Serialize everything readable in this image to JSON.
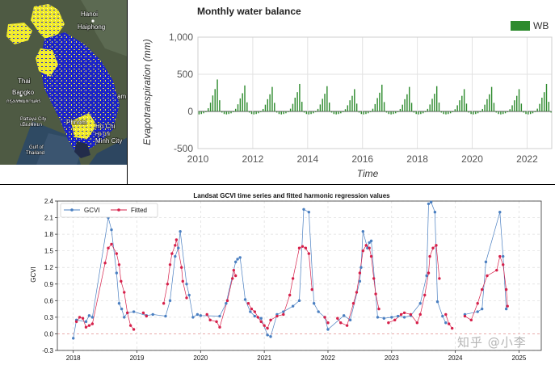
{
  "map": {
    "labels": [
      "Hanoi",
      "Haiphong",
      "Thai",
      "Bangko",
      "กรุงเทพมหานคร",
      "Pattaya City",
      "เมืองพัทยา",
      "Phnom",
      "Ho Chi",
      "Hồ Chí",
      "Minh City",
      "Gulf of",
      "Thailand",
      "am"
    ]
  },
  "chart_data": [
    {
      "type": "bar",
      "title": "Monthly water balance",
      "xlabel": "Time",
      "ylabel": "Evapotranspiration (mm)",
      "xlim": [
        2010,
        2022.9
      ],
      "ylim": [
        -500,
        1000
      ],
      "xticks": [
        2010,
        2012,
        2014,
        2016,
        2018,
        2020,
        2022
      ],
      "xtick_labels": [
        "2010",
        "2012",
        "2014",
        "2016",
        "2018",
        "2020",
        "2022"
      ],
      "yticks": [
        -500,
        0,
        500,
        1000
      ],
      "ytick_labels": [
        "-500",
        "0",
        "500",
        "1,000"
      ],
      "legend_position": "top-right",
      "grid": true,
      "series": [
        {
          "name": "WB",
          "color": "#2e8b2e",
          "start": "2010-01",
          "monthly_pattern": [
            -40,
            -35,
            -25,
            -10,
            40,
            110,
            200,
            280,
            400,
            140,
            -15,
            -35
          ],
          "year_peak_sep": [
            430,
            350,
            330,
            370,
            340,
            300,
            360,
            330,
            340,
            300,
            330,
            300,
            370
          ]
        }
      ]
    },
    {
      "type": "scatter",
      "title": "Landsat GCVI time series and fitted harmonic regression values",
      "xlabel": "",
      "ylabel": "GCVI",
      "xlim": [
        2017.75,
        2025.35
      ],
      "ylim": [
        -0.3,
        2.4
      ],
      "xticks": [
        2018,
        2019,
        2020,
        2021,
        2022,
        2023,
        2024,
        2025
      ],
      "xtick_labels": [
        "2018",
        "2019",
        "2020",
        "2021",
        "2022",
        "2023",
        "2024",
        "2025"
      ],
      "yticks": [
        -0.3,
        0.0,
        0.3,
        0.6,
        0.9,
        1.2,
        1.5,
        1.8,
        2.1,
        2.4
      ],
      "ytick_labels": [
        "-0.3",
        "0.0",
        "0.3",
        "0.6",
        "0.9",
        "1.2",
        "1.5",
        "1.8",
        "2.1",
        "2.4"
      ],
      "legend_position": "top-left",
      "grid": true,
      "series": [
        {
          "name": "GCVI",
          "color": "#4a7fc1",
          "points": [
            [
              2018.0,
              -0.08
            ],
            [
              2018.05,
              0.25
            ],
            [
              2018.2,
              0.22
            ],
            [
              2018.25,
              0.33
            ],
            [
              2018.3,
              0.3
            ],
            [
              2018.55,
              2.1
            ],
            [
              2018.6,
              1.88
            ],
            [
              2018.68,
              1.1
            ],
            [
              2018.72,
              0.55
            ],
            [
              2018.76,
              0.45
            ],
            [
              2018.8,
              0.3
            ],
            [
              2018.85,
              0.38
            ],
            [
              2018.95,
              0.4
            ],
            [
              2019.15,
              0.33
            ],
            [
              2019.25,
              0.35
            ],
            [
              2019.45,
              0.32
            ],
            [
              2019.52,
              0.6
            ],
            [
              2019.6,
              1.4
            ],
            [
              2019.65,
              1.55
            ],
            [
              2019.68,
              1.85
            ],
            [
              2019.78,
              0.9
            ],
            [
              2019.82,
              0.7
            ],
            [
              2019.88,
              0.3
            ],
            [
              2019.95,
              0.35
            ],
            [
              2020.0,
              0.33
            ],
            [
              2020.3,
              0.32
            ],
            [
              2020.4,
              0.55
            ],
            [
              2020.55,
              1.3
            ],
            [
              2020.58,
              1.35
            ],
            [
              2020.62,
              1.38
            ],
            [
              2020.7,
              0.62
            ],
            [
              2020.78,
              0.4
            ],
            [
              2020.85,
              0.32
            ],
            [
              2020.95,
              0.28
            ],
            [
              2021.05,
              -0.02
            ],
            [
              2021.1,
              -0.05
            ],
            [
              2021.2,
              0.35
            ],
            [
              2021.3,
              0.4
            ],
            [
              2021.45,
              0.5
            ],
            [
              2021.55,
              0.6
            ],
            [
              2021.62,
              2.25
            ],
            [
              2021.7,
              2.2
            ],
            [
              2021.78,
              0.55
            ],
            [
              2021.85,
              0.4
            ],
            [
              2021.95,
              0.3
            ],
            [
              2022.0,
              0.08
            ],
            [
              2022.25,
              0.33
            ],
            [
              2022.35,
              0.25
            ],
            [
              2022.5,
              0.95
            ],
            [
              2022.52,
              1.2
            ],
            [
              2022.55,
              1.85
            ],
            [
              2022.62,
              1.55
            ],
            [
              2022.65,
              1.65
            ],
            [
              2022.68,
              1.68
            ],
            [
              2022.78,
              0.3
            ],
            [
              2022.88,
              0.28
            ],
            [
              2023.0,
              0.3
            ],
            [
              2023.1,
              0.32
            ],
            [
              2023.2,
              0.3
            ],
            [
              2023.3,
              0.33
            ],
            [
              2023.45,
              0.55
            ],
            [
              2023.55,
              1.05
            ],
            [
              2023.58,
              2.35
            ],
            [
              2023.62,
              2.38
            ],
            [
              2023.68,
              2.2
            ],
            [
              2023.72,
              0.58
            ],
            [
              2023.8,
              0.32
            ],
            [
              2023.85,
              0.2
            ],
            [
              2024.15,
              0.35
            ],
            [
              2024.35,
              0.4
            ],
            [
              2024.42,
              0.45
            ],
            [
              2024.48,
              1.3
            ],
            [
              2024.7,
              2.2
            ],
            [
              2024.75,
              1.4
            ],
            [
              2024.8,
              0.45
            ]
          ]
        },
        {
          "name": "Fitted",
          "color": "#d6204a",
          "segments": [
            [
              [
                2018.05,
                0.22
              ],
              [
                2018.1,
                0.3
              ],
              [
                2018.15,
                0.28
              ],
              [
                2018.2,
                0.12
              ],
              [
                2018.25,
                0.15
              ],
              [
                2018.3,
                0.18
              ],
              [
                2018.5,
                1.28
              ],
              [
                2018.55,
                1.55
              ],
              [
                2018.6,
                1.62
              ],
              [
                2018.68,
                1.45
              ],
              [
                2018.72,
                1.25
              ],
              [
                2018.75,
                0.95
              ],
              [
                2018.8,
                0.75
              ],
              [
                2018.85,
                0.38
              ],
              [
                2018.9,
                0.15
              ],
              [
                2018.95,
                0.08
              ]
            ],
            [
              [
                2019.1,
                0.38
              ],
              [
                2019.15,
                0.32
              ]
            ],
            [
              [
                2019.42,
                0.55
              ],
              [
                2019.48,
                0.9
              ],
              [
                2019.52,
                1.25
              ],
              [
                2019.55,
                1.45
              ],
              [
                2019.6,
                1.6
              ],
              [
                2019.62,
                1.7
              ],
              [
                2019.7,
                1.2
              ],
              [
                2019.72,
                0.95
              ],
              [
                2019.78,
                0.65
              ]
            ],
            [
              [
                2020.1,
                0.35
              ],
              [
                2020.15,
                0.25
              ],
              [
                2020.25,
                0.22
              ],
              [
                2020.3,
                0.12
              ],
              [
                2020.42,
                0.6
              ],
              [
                2020.5,
                1.0
              ],
              [
                2020.52,
                1.15
              ],
              [
                2020.55,
                1.05
              ]
            ],
            [
              [
                2020.75,
                0.55
              ],
              [
                2020.8,
                0.45
              ],
              [
                2020.85,
                0.4
              ],
              [
                2020.9,
                0.3
              ],
              [
                2020.95,
                0.22
              ],
              [
                2021.0,
                0.15
              ],
              [
                2021.05,
                0.1
              ],
              [
                2021.1,
                0.25
              ],
              [
                2021.2,
                0.32
              ],
              [
                2021.3,
                0.35
              ],
              [
                2021.4,
                0.7
              ],
              [
                2021.45,
                1.0
              ],
              [
                2021.55,
                1.55
              ],
              [
                2021.6,
                1.58
              ],
              [
                2021.65,
                1.55
              ],
              [
                2021.7,
                1.45
              ],
              [
                2021.75,
                0.8
              ]
            ],
            [
              [
                2021.95,
                0.3
              ],
              [
                2022.0,
                0.2
              ]
            ],
            [
              [
                2022.15,
                0.28
              ],
              [
                2022.2,
                0.2
              ],
              [
                2022.3,
                0.15
              ],
              [
                2022.4,
                0.55
              ],
              [
                2022.45,
                0.75
              ],
              [
                2022.5,
                1.1
              ],
              [
                2022.55,
                1.5
              ],
              [
                2022.6,
                1.6
              ],
              [
                2022.65,
                1.55
              ],
              [
                2022.68,
                1.4
              ],
              [
                2022.72,
                1.0
              ],
              [
                2022.75,
                0.72
              ],
              [
                2022.8,
                0.45
              ]
            ],
            [
              [
                2022.95,
                0.2
              ],
              [
                2023.05,
                0.25
              ],
              [
                2023.15,
                0.35
              ],
              [
                2023.2,
                0.38
              ],
              [
                2023.3,
                0.35
              ],
              [
                2023.4,
                0.2
              ],
              [
                2023.45,
                0.35
              ],
              [
                2023.52,
                0.7
              ],
              [
                2023.58,
                1.1
              ],
              [
                2023.6,
                1.4
              ],
              [
                2023.65,
                1.55
              ],
              [
                2023.7,
                1.6
              ],
              [
                2023.75,
                1.0
              ]
            ],
            [
              [
                2023.85,
                0.35
              ],
              [
                2023.9,
                0.18
              ],
              [
                2023.95,
                0.1
              ]
            ],
            [
              [
                2024.15,
                0.32
              ],
              [
                2024.25,
                0.25
              ],
              [
                2024.35,
                0.55
              ],
              [
                2024.42,
                0.8
              ],
              [
                2024.5,
                1.05
              ],
              [
                2024.65,
                1.15
              ],
              [
                2024.7,
                1.4
              ],
              [
                2024.75,
                1.25
              ],
              [
                2024.8,
                0.8
              ],
              [
                2024.82,
                0.5
              ]
            ]
          ]
        }
      ]
    }
  ],
  "watermark": "知乎 @小李"
}
